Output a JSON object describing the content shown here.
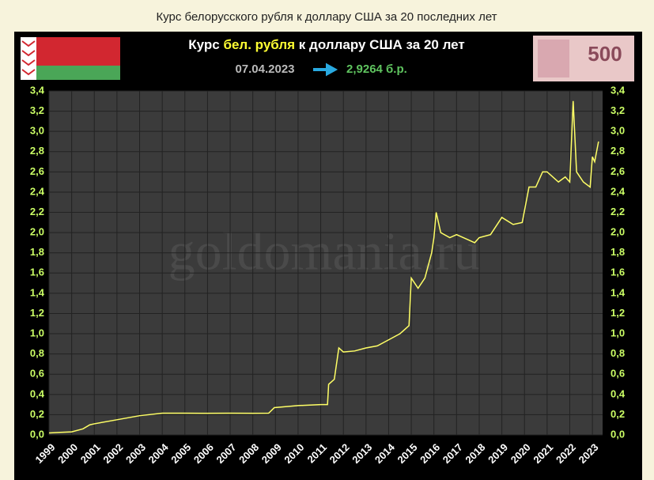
{
  "page_title": "Курс белорусского рубля к доллару США за 20 последних лет",
  "header": {
    "title_parts": [
      "Курс ",
      "бел. рубля",
      " к доллару США за 20 лет"
    ],
    "date": "07.04.2023",
    "current_value": "2,9264 б.р.",
    "banknote_text": "500"
  },
  "watermark": "goldomania.ru",
  "chart_data": {
    "type": "line",
    "color": "#ffff66",
    "grid": true,
    "x": [
      1999.0,
      1999.5,
      2000.0,
      2000.5,
      2000.8,
      2001.0,
      2002.0,
      2003.0,
      2004.0,
      2005.0,
      2006.0,
      2007.0,
      2008.0,
      2008.7,
      2008.95,
      2009.5,
      2010.0,
      2011.0,
      2011.3,
      2011.35,
      2011.6,
      2011.8,
      2012.0,
      2012.5,
      2013.0,
      2013.5,
      2014.0,
      2014.5,
      2014.9,
      2015.0,
      2015.3,
      2015.6,
      2015.9,
      2016.0,
      2016.1,
      2016.3,
      2016.7,
      2017.0,
      2017.5,
      2017.8,
      2018.0,
      2018.5,
      2019.0,
      2019.5,
      2019.9,
      2020.2,
      2020.5,
      2020.8,
      2021.0,
      2021.5,
      2021.8,
      2022.0,
      2022.15,
      2022.3,
      2022.6,
      2022.9,
      2023.0,
      2023.1,
      2023.27
    ],
    "values": [
      0.02,
      0.025,
      0.03,
      0.06,
      0.1,
      0.11,
      0.15,
      0.19,
      0.215,
      0.215,
      0.214,
      0.215,
      0.214,
      0.215,
      0.27,
      0.28,
      0.29,
      0.3,
      0.3,
      0.5,
      0.55,
      0.86,
      0.82,
      0.83,
      0.86,
      0.88,
      0.94,
      1.0,
      1.08,
      1.55,
      1.45,
      1.55,
      1.8,
      1.95,
      2.2,
      2.0,
      1.95,
      1.98,
      1.93,
      1.9,
      1.95,
      1.98,
      2.15,
      2.08,
      2.1,
      2.45,
      2.45,
      2.6,
      2.6,
      2.5,
      2.55,
      2.5,
      3.3,
      2.6,
      2.5,
      2.45,
      2.75,
      2.7,
      2.9
    ],
    "xlim": [
      1999,
      2023.45
    ],
    "xticks": [
      1999,
      2000,
      2001,
      2002,
      2003,
      2004,
      2005,
      2006,
      2007,
      2008,
      2009,
      2010,
      2011,
      2012,
      2013,
      2014,
      2015,
      2016,
      2017,
      2018,
      2019,
      2020,
      2021,
      2022,
      2023
    ],
    "ylim": [
      0,
      3.4
    ],
    "yticks": [
      {
        "value": 0,
        "label": "0,0"
      },
      {
        "value": 0.2,
        "label": "0,2"
      },
      {
        "value": 0.4,
        "label": "0,4"
      },
      {
        "value": 0.6,
        "label": "0,6"
      },
      {
        "value": 0.8,
        "label": "0,8"
      },
      {
        "value": 1.0,
        "label": "1,0"
      },
      {
        "value": 1.2,
        "label": "1,2"
      },
      {
        "value": 1.4,
        "label": "1,4"
      },
      {
        "value": 1.6,
        "label": "1,6"
      },
      {
        "value": 1.8,
        "label": "1,8"
      },
      {
        "value": 2.0,
        "label": "2,0"
      },
      {
        "value": 2.2,
        "label": "2,2"
      },
      {
        "value": 2.4,
        "label": "2,4"
      },
      {
        "value": 2.6,
        "label": "2,6"
      },
      {
        "value": 2.8,
        "label": "2,8"
      },
      {
        "value": 3.0,
        "label": "3,0"
      },
      {
        "value": 3.2,
        "label": "3,2"
      },
      {
        "value": 3.4,
        "label": "3,4"
      }
    ]
  }
}
